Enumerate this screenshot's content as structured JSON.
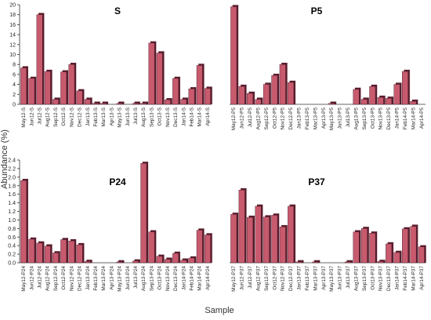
{
  "figure": {
    "ylabel": "Abundance (%)",
    "xlabel": "Sample",
    "bar_color": "#c85a6e",
    "bar_shadow_color": "#5a1e2e"
  },
  "chart_data": [
    {
      "type": "bar",
      "title": "S",
      "ylim": [
        0,
        20
      ],
      "yticks": [
        0,
        2,
        4,
        6,
        8,
        10,
        12,
        14,
        16,
        18,
        20
      ],
      "categories": [
        "May12-S",
        "Jun12-S",
        "Jul12-S",
        "Aug12-S",
        "Sep12-S",
        "Oct12-S",
        "Nov12-S",
        "Dec12-S",
        "Jan13-S",
        "Feb13-S",
        "Mar13-S",
        "Apr13-S",
        "May13-S",
        "Jun13-S",
        "Jul13-S",
        "Aug13-S",
        "Sep13-S",
        "Oct13-S",
        "Nov13-S",
        "Dec13-S",
        "Jan14-S",
        "Feb14-S",
        "Mar14-S",
        "Apr14-S"
      ],
      "values": [
        7.3,
        5.2,
        18.0,
        6.6,
        1.0,
        6.5,
        8.0,
        2.7,
        1.0,
        0.2,
        0.2,
        0.0,
        0.2,
        0.0,
        0.2,
        0.2,
        12.3,
        10.3,
        0.9,
        5.2,
        1.0,
        3.1,
        7.8,
        3.2
      ]
    },
    {
      "type": "bar",
      "title": "P5",
      "ylim": [
        0,
        20
      ],
      "yticks": [
        0,
        2,
        4,
        6,
        8,
        10,
        12,
        14,
        16,
        18,
        20
      ],
      "categories": [
        "May12-P5",
        "Jun12-P5",
        "Jul12-P5",
        "Aug12-P5",
        "Sep12-P5",
        "Oct12-P5",
        "Nov12-P5",
        "Dec12-P5",
        "Jan13-P5",
        "Feb13-P5",
        "Mar13-P5",
        "Apr13-P5",
        "May13-P5",
        "Jun13-P5",
        "Jul13-P5",
        "Aug13-P5",
        "Sep13-P5",
        "Oct13-P5",
        "Nov13-P5",
        "Dec13-P5",
        "Jan14-P5",
        "Feb14-P5",
        "Mar14-P5",
        "Apr14-P5"
      ],
      "values": [
        19.6,
        3.6,
        2.2,
        1.0,
        4.0,
        5.8,
        8.0,
        4.4,
        0.0,
        0.0,
        0.0,
        0.0,
        0.2,
        0.0,
        0.0,
        3.0,
        1.0,
        3.6,
        1.4,
        1.2,
        4.0,
        6.6,
        0.6,
        0.0
      ]
    },
    {
      "type": "bar",
      "title": "P24",
      "ylim": [
        0,
        2.4
      ],
      "yticks": [
        0.0,
        0.2,
        0.4,
        0.6,
        0.8,
        1.0,
        1.2,
        1.4,
        1.6,
        1.8,
        2.0,
        2.2,
        2.4
      ],
      "categories": [
        "May12-P24",
        "Jun12-P24",
        "Jul12-P24",
        "Aug12-P24",
        "Sep12-P24",
        "Oct12-P24",
        "Nov12-P24",
        "Dec12-P24",
        "Jan13-P24",
        "Feb13-P24",
        "Mar13-P24",
        "Apr13-P24",
        "May13-P24",
        "Jun13-P24",
        "Jul13-P24",
        "Aug13-P24",
        "Sep13-P24",
        "Oct13-P24",
        "Nov13-P24",
        "Dec13-P24",
        "Jan14-P24",
        "Feb14-P24",
        "Mar14-P24",
        "Apr14-P24"
      ],
      "values": [
        1.92,
        0.55,
        0.46,
        0.39,
        0.23,
        0.54,
        0.51,
        0.42,
        0.03,
        0.0,
        0.0,
        0.0,
        0.02,
        0.0,
        0.04,
        2.32,
        0.72,
        0.15,
        0.08,
        0.22,
        0.06,
        0.11,
        0.76,
        0.65
      ]
    },
    {
      "type": "bar",
      "title": "P37",
      "ylim": [
        0,
        2.4
      ],
      "yticks": [
        0.0,
        0.2,
        0.4,
        0.6,
        0.8,
        1.0,
        1.2,
        1.4,
        1.6,
        1.8,
        2.0,
        2.2,
        2.4
      ],
      "categories": [
        "May12-P37",
        "Jun12-P37",
        "Jul12-P37",
        "Aug12-P37",
        "Sep12-P37",
        "Oct12-P37",
        "Nov12-P37",
        "Dec12-P37",
        "Jan13-P37",
        "Feb13-P37",
        "Mar13-P37",
        "Apr13-P37",
        "May13-P37",
        "Jun13-P37",
        "Jul13-P37",
        "Aug13-P37",
        "Sep13-P37",
        "Oct13-P37",
        "Nov13-P37",
        "Dec13-P37",
        "Jan14-P37",
        "Feb14-P37",
        "Mar14-P37",
        "Apr14-P37"
      ],
      "values": [
        1.13,
        1.7,
        1.06,
        1.32,
        1.07,
        1.11,
        0.84,
        1.32,
        0.02,
        0.0,
        0.02,
        0.0,
        0.0,
        0.0,
        0.02,
        0.72,
        0.8,
        0.69,
        0.03,
        0.44,
        0.24,
        0.79,
        0.85,
        0.37
      ]
    }
  ]
}
